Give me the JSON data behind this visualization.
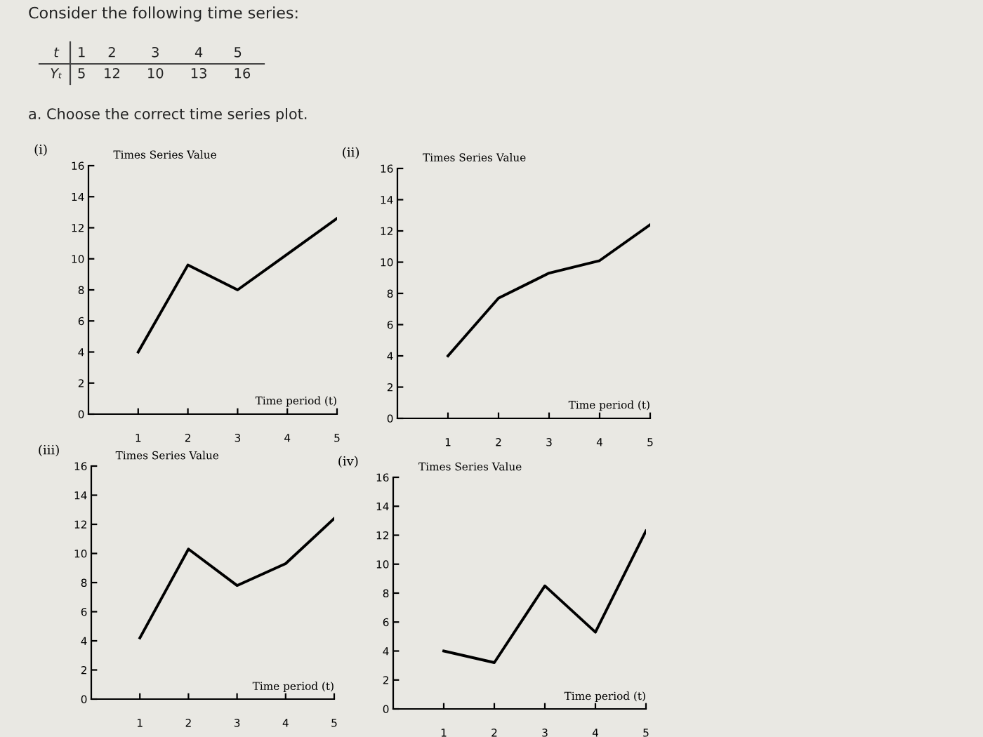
{
  "chart_data": [
    {
      "type": "other",
      "title": "Consider the following time series:",
      "annotations": [
        "t",
        "1     2        3        4       5",
        "Yₜ",
        "5    12      10      13      16",
        "a. Choose the correct time series plot."
      ]
    },
    {
      "type": "line",
      "title": "(i)",
      "ylabel": "Times Series Value",
      "xlabel": "Time period (t)",
      "x": [
        1,
        2,
        3,
        4,
        5
      ],
      "series": [
        {
          "color": "#000000",
          "values": [
            4,
            9.6,
            8,
            10.3,
            12.6
          ]
        }
      ],
      "xlim": [
        0,
        5
      ],
      "ylim": [
        0,
        16
      ],
      "xticks": [
        1,
        2,
        3,
        4,
        5
      ],
      "yticks": [
        0,
        2,
        4,
        6,
        8,
        10,
        12,
        14,
        16
      ],
      "grid": false,
      "legend": false,
      "marker": "none",
      "line_style": "solid"
    },
    {
      "type": "line",
      "title": "(ii)",
      "ylabel": "Times Series Value",
      "xlabel": "Time period (t)",
      "x": [
        1,
        2,
        3,
        4,
        5
      ],
      "series": [
        {
          "color": "#000000",
          "values": [
            4,
            7.7,
            9.3,
            10.1,
            12.4
          ]
        }
      ],
      "xlim": [
        0,
        5
      ],
      "ylim": [
        0,
        16
      ],
      "xticks": [
        1,
        2,
        3,
        4,
        5
      ],
      "yticks": [
        0,
        2,
        4,
        6,
        8,
        10,
        12,
        14,
        16
      ],
      "grid": false,
      "legend": false,
      "marker": "none",
      "line_style": "solid"
    },
    {
      "type": "line",
      "title": "(iii)",
      "ylabel": "Times Series Value",
      "xlabel": "Time period (t)",
      "x": [
        1,
        2,
        3,
        4,
        5
      ],
      "series": [
        {
          "color": "#000000",
          "values": [
            4.2,
            10.3,
            7.8,
            9.3,
            12.4
          ]
        }
      ],
      "xlim": [
        0,
        5
      ],
      "ylim": [
        0,
        16
      ],
      "xticks": [
        1,
        2,
        3,
        4,
        5
      ],
      "yticks": [
        0,
        2,
        4,
        6,
        8,
        10,
        12,
        14,
        16
      ],
      "grid": false,
      "legend": false,
      "marker": "none",
      "line_style": "solid"
    },
    {
      "type": "line",
      "title": "(iv)",
      "ylabel": "Times Series Value",
      "xlabel": "Time period (t)",
      "x": [
        1,
        2,
        3,
        4,
        5
      ],
      "series": [
        {
          "color": "#000000",
          "values": [
            4,
            3.2,
            8.5,
            5.3,
            12.3
          ]
        }
      ],
      "xlim": [
        0,
        5
      ],
      "ylim": [
        0,
        16
      ],
      "xticks": [
        1,
        2,
        3,
        4,
        5
      ],
      "yticks": [
        0,
        2,
        4,
        6,
        8,
        10,
        12,
        14,
        16
      ],
      "grid": false,
      "legend": false,
      "marker": "none",
      "line_style": "solid"
    }
  ]
}
